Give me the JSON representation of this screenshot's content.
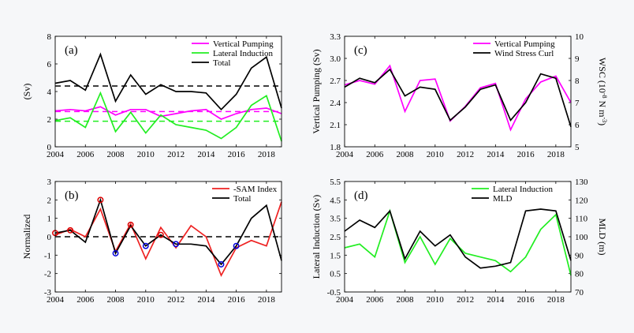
{
  "chart_data": [
    {
      "id": "a",
      "type": "line",
      "panel_label": "(a)",
      "ylabel": "(Sv)",
      "xlim": [
        2004,
        2019
      ],
      "ylim": [
        0,
        8
      ],
      "xticks": [
        2004,
        2006,
        2008,
        2010,
        2012,
        2014,
        2016,
        2018
      ],
      "yticks": [
        0,
        2,
        4,
        6,
        8
      ],
      "legend": "top-right",
      "x": [
        2004,
        2005,
        2006,
        2007,
        2008,
        2009,
        2010,
        2011,
        2012,
        2013,
        2014,
        2015,
        2016,
        2017,
        2018,
        2019
      ],
      "series": [
        {
          "name": "Vertical Pumping",
          "color": "#ff00ff",
          "values": [
            2.6,
            2.7,
            2.6,
            2.9,
            2.3,
            2.7,
            2.7,
            2.2,
            2.4,
            2.6,
            2.7,
            2.0,
            2.4,
            2.7,
            2.8,
            2.4
          ]
        },
        {
          "name": "Lateral Induction",
          "color": "#22ee22",
          "values": [
            1.9,
            2.1,
            1.4,
            3.9,
            1.1,
            2.5,
            1.0,
            2.3,
            1.6,
            1.4,
            1.2,
            0.6,
            1.4,
            3.0,
            3.7,
            0.4
          ]
        },
        {
          "name": "Total",
          "color": "#000000",
          "values": [
            4.6,
            4.8,
            4.1,
            6.7,
            3.3,
            5.2,
            3.8,
            4.5,
            4.0,
            4.0,
            3.9,
            2.7,
            3.8,
            5.7,
            6.5,
            2.8
          ]
        }
      ],
      "hlines": [
        {
          "y": 4.4,
          "color": "#000000",
          "style": "dashed"
        },
        {
          "y": 2.55,
          "color": "#ff00ff",
          "style": "dashed"
        },
        {
          "y": 1.85,
          "color": "#22ee22",
          "style": "dashed"
        }
      ]
    },
    {
      "id": "b",
      "type": "line",
      "panel_label": "(b)",
      "ylabel": "Normalized",
      "xlim": [
        2004,
        2019
      ],
      "ylim": [
        -3,
        3
      ],
      "xticks": [
        2004,
        2006,
        2008,
        2010,
        2012,
        2014,
        2016,
        2018
      ],
      "yticks": [
        -3,
        -2,
        -1,
        0,
        1,
        2,
        3
      ],
      "legend": "top-right",
      "x": [
        2004,
        2005,
        2006,
        2007,
        2008,
        2009,
        2010,
        2011,
        2012,
        2013,
        2014,
        2015,
        2016,
        2017,
        2018,
        2019
      ],
      "series": [
        {
          "name": "-SAM Index",
          "color": "#ee2222",
          "values": [
            0.1,
            0.4,
            0.0,
            1.5,
            -0.8,
            0.7,
            -1.2,
            0.5,
            -0.6,
            0.6,
            0.0,
            -2.1,
            -0.6,
            -0.2,
            -0.5,
            1.9
          ]
        },
        {
          "name": "Total",
          "color": "#000000",
          "values": [
            0.2,
            0.35,
            -0.3,
            2.0,
            -0.9,
            0.6,
            -0.5,
            0.1,
            -0.4,
            -0.4,
            -0.5,
            -1.5,
            -0.5,
            1.0,
            1.7,
            -1.3
          ]
        }
      ],
      "hlines": [
        {
          "y": 0,
          "color": "#000000",
          "style": "dashed"
        }
      ],
      "markers": [
        {
          "x": 2004,
          "y": 0.2,
          "color": "#dd0000"
        },
        {
          "x": 2005,
          "y": 0.35,
          "color": "#dd0000"
        },
        {
          "x": 2007,
          "y": 2.0,
          "color": "#dd0000"
        },
        {
          "x": 2008,
          "y": -0.9,
          "color": "#0000dd"
        },
        {
          "x": 2009,
          "y": 0.65,
          "color": "#dd0000"
        },
        {
          "x": 2010,
          "y": -0.5,
          "color": "#0000dd"
        },
        {
          "x": 2011,
          "y": 0.1,
          "color": "#dd0000"
        },
        {
          "x": 2012,
          "y": -0.4,
          "color": "#0000dd"
        },
        {
          "x": 2015,
          "y": -1.5,
          "color": "#0000dd"
        },
        {
          "x": 2016,
          "y": -0.5,
          "color": "#0000dd"
        }
      ]
    },
    {
      "id": "c",
      "type": "line",
      "panel_label": "(c)",
      "ylabel": "Vertical Pumping (Sv)",
      "y2label": "WSC (10^-8 N m^-3)",
      "xlim": [
        2004,
        2019
      ],
      "ylim": [
        1.8,
        3.3
      ],
      "y2lim": [
        5,
        10
      ],
      "xticks": [
        2004,
        2006,
        2008,
        2010,
        2012,
        2014,
        2016,
        2018
      ],
      "yticks": [
        1.8,
        2.1,
        2.4,
        2.7,
        3.0,
        3.3
      ],
      "y2ticks": [
        5,
        6,
        7,
        8,
        9,
        10
      ],
      "legend": "top-right",
      "x": [
        2004,
        2005,
        2006,
        2007,
        2008,
        2009,
        2010,
        2011,
        2012,
        2013,
        2014,
        2015,
        2016,
        2017,
        2018,
        2019
      ],
      "series": [
        {
          "name": "Vertical Pumping",
          "color": "#ff00ff",
          "axis": "left",
          "values": [
            2.64,
            2.7,
            2.65,
            2.9,
            2.28,
            2.7,
            2.72,
            2.15,
            2.35,
            2.6,
            2.66,
            2.03,
            2.45,
            2.68,
            2.76,
            2.4
          ]
        },
        {
          "name": "Wind Stress Curl",
          "color": "#000000",
          "axis": "right",
          "values": [
            7.7,
            8.1,
            7.9,
            8.5,
            7.3,
            7.7,
            7.6,
            6.2,
            6.8,
            7.6,
            7.8,
            6.2,
            7.0,
            8.3,
            8.1,
            5.9
          ]
        }
      ]
    },
    {
      "id": "d",
      "type": "line",
      "panel_label": "(d)",
      "ylabel": "Lateral Induction (Sv)",
      "y2label": "MLD (m)",
      "xlim": [
        2004,
        2019
      ],
      "ylim": [
        -0.5,
        5.5
      ],
      "y2lim": [
        70,
        130
      ],
      "xticks": [
        2004,
        2006,
        2008,
        2010,
        2012,
        2014,
        2016,
        2018
      ],
      "yticks": [
        -0.5,
        0.5,
        1.5,
        2.5,
        3.5,
        4.5,
        5.5
      ],
      "y2ticks": [
        70,
        80,
        90,
        100,
        110,
        120,
        130
      ],
      "legend": "top-right",
      "x": [
        2004,
        2005,
        2006,
        2007,
        2008,
        2009,
        2010,
        2011,
        2012,
        2013,
        2014,
        2015,
        2016,
        2017,
        2018,
        2019
      ],
      "series": [
        {
          "name": "Lateral Induction",
          "color": "#22ee22",
          "axis": "left",
          "values": [
            1.9,
            2.1,
            1.4,
            3.9,
            1.1,
            2.5,
            1.0,
            2.4,
            1.6,
            1.4,
            1.2,
            0.6,
            1.4,
            2.9,
            3.7,
            0.4
          ]
        },
        {
          "name": "MLD",
          "color": "#000000",
          "axis": "right",
          "values": [
            103,
            109,
            105,
            114,
            88,
            103,
            95,
            101,
            89,
            83,
            84,
            86,
            114,
            115,
            114,
            87
          ]
        }
      ]
    }
  ]
}
